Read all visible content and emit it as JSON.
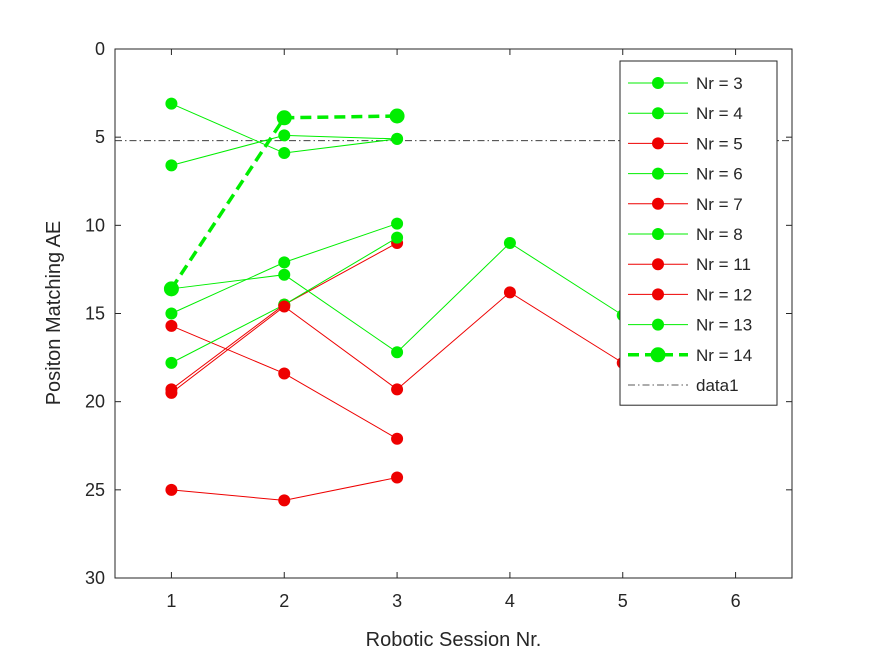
{
  "chart_data": {
    "type": "line",
    "title": "",
    "xlabel": "Robotic Session Nr.",
    "ylabel": "Positon Matching AE",
    "xlim": [
      0.5,
      6.5
    ],
    "ylim": [
      0,
      30
    ],
    "y_reversed": true,
    "xticks": [
      1,
      2,
      3,
      4,
      5,
      6
    ],
    "yticks": [
      0,
      5,
      10,
      15,
      20,
      25,
      30
    ],
    "grid": false,
    "legend_position": "top-right",
    "colors": {
      "green": "#00ee00",
      "red": "#ee0000",
      "reference": "#222222"
    },
    "series": [
      {
        "name": "Nr = 3",
        "color": "green",
        "x": [
          1,
          2,
          3
        ],
        "y": [
          3.1,
          5.9,
          5.1
        ]
      },
      {
        "name": "Nr = 4",
        "color": "green",
        "x": [
          1,
          2,
          3
        ],
        "y": [
          6.6,
          4.9,
          5.1
        ]
      },
      {
        "name": "Nr = 5",
        "color": "red",
        "x": [
          1,
          2,
          3
        ],
        "y": [
          15.7,
          18.4,
          22.1
        ]
      },
      {
        "name": "Nr = 6",
        "color": "green",
        "x": [
          1,
          2,
          3
        ],
        "y": [
          15.0,
          12.1,
          9.9
        ]
      },
      {
        "name": "Nr = 7",
        "color": "red",
        "x": [
          1,
          2,
          3
        ],
        "y": [
          19.3,
          14.5,
          11.0
        ]
      },
      {
        "name": "Nr = 8",
        "color": "green",
        "x": [
          1,
          2,
          3
        ],
        "y": [
          17.8,
          14.5,
          10.7
        ]
      },
      {
        "name": "Nr = 11",
        "color": "red",
        "x": [
          1,
          2,
          3
        ],
        "y": [
          25.0,
          25.6,
          24.3
        ]
      },
      {
        "name": "Nr = 12",
        "color": "red",
        "x": [
          1,
          2,
          3,
          4,
          5
        ],
        "y": [
          19.5,
          14.6,
          19.3,
          13.8,
          17.8
        ]
      },
      {
        "name": "Nr = 13",
        "color": "green",
        "x": [
          1,
          2,
          3,
          4,
          5
        ],
        "y": [
          13.6,
          12.8,
          17.2,
          11.0,
          15.1
        ]
      },
      {
        "name": "Nr = 14",
        "color": "green",
        "x": [
          1,
          2,
          3
        ],
        "y": [
          13.6,
          3.9,
          3.8
        ],
        "style": "dashed-bold"
      }
    ],
    "reference_line": {
      "name": "data1",
      "y": 5.2,
      "style": "dash-dot"
    }
  }
}
